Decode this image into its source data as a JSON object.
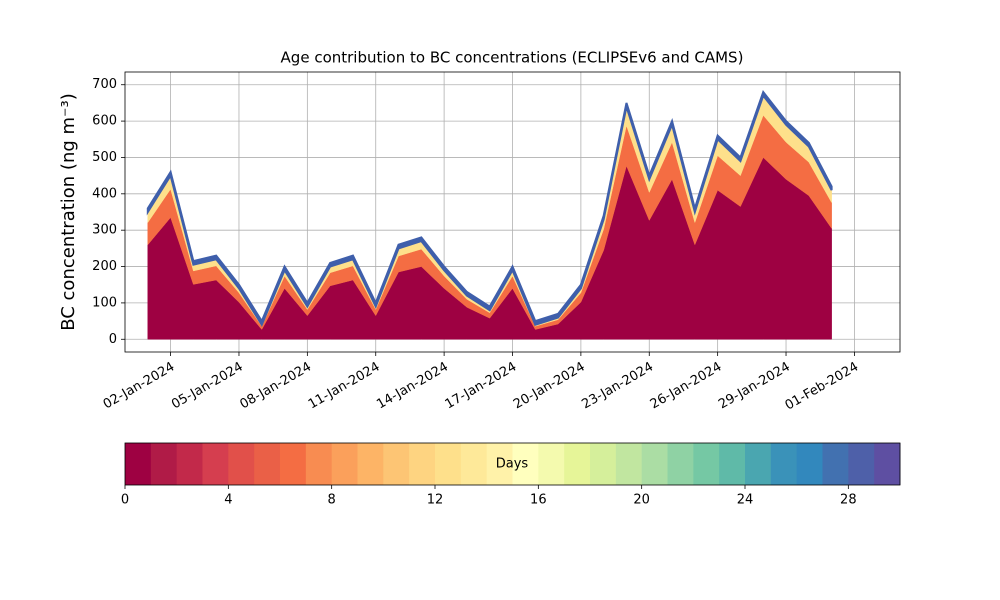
{
  "chart_data": {
    "type": "stacked_area",
    "title": "Age contribution to BC concentrations (ECLIPSEv6 and CAMS)",
    "y_label": "BC concentration (ng m⁻³)",
    "x": [
      "2024-01-01",
      "2024-01-02",
      "2024-01-03",
      "2024-01-04",
      "2024-01-05",
      "2024-01-06",
      "2024-01-07",
      "2024-01-08",
      "2024-01-09",
      "2024-01-10",
      "2024-01-11",
      "2024-01-12",
      "2024-01-13",
      "2024-01-14",
      "2024-01-15",
      "2024-01-16",
      "2024-01-17",
      "2024-01-18",
      "2024-01-19",
      "2024-01-20",
      "2024-01-21",
      "2024-01-22",
      "2024-01-23",
      "2024-01-24",
      "2024-01-25",
      "2024-01-26",
      "2024-01-27",
      "2024-01-28",
      "2024-01-29",
      "2024-01-30",
      "2024-01-31"
    ],
    "series": [
      {
        "color": "#9e0142",
        "values": [
          260,
          335,
          151,
          163,
          102,
          27,
          140,
          65,
          147,
          163,
          65,
          185,
          200,
          140,
          88,
          58,
          140,
          27,
          42,
          102,
          245,
          477,
          327,
          440,
          260,
          410,
          365,
          500,
          440,
          395,
          305
        ]
      },
      {
        "color": "#f46d43",
        "values": [
          61,
          78,
          37,
          39,
          26,
          9,
          34,
          17,
          36,
          39,
          17,
          44,
          48,
          34,
          22,
          15,
          34,
          9,
          12,
          26,
          58,
          111,
          77,
          102,
          61,
          95,
          85,
          116,
          102,
          92,
          71
        ]
      },
      {
        "color": "#fee08b",
        "values": [
          29,
          37,
          17,
          18,
          12,
          4,
          16,
          8,
          17,
          18,
          8,
          21,
          22,
          16,
          10,
          7,
          16,
          4,
          6,
          12,
          27,
          52,
          36,
          48,
          29,
          45,
          40,
          54,
          48,
          43,
          34
        ]
      },
      {
        "color": "#3f5fab",
        "values": [
          10,
          10,
          10,
          10,
          10,
          10,
          10,
          10,
          10,
          10,
          10,
          10,
          10,
          10,
          10,
          10,
          10,
          10,
          10,
          10,
          10,
          10,
          10,
          10,
          10,
          10,
          10,
          10,
          10,
          10,
          10
        ]
      }
    ],
    "xlim": [
      "2023-12-31",
      "2024-02-03"
    ],
    "xticks": [
      {
        "value": "2024-01-02",
        "label": "02-Jan-2024"
      },
      {
        "value": "2024-01-05",
        "label": "05-Jan-2024"
      },
      {
        "value": "2024-01-08",
        "label": "08-Jan-2024"
      },
      {
        "value": "2024-01-11",
        "label": "11-Jan-2024"
      },
      {
        "value": "2024-01-14",
        "label": "14-Jan-2024"
      },
      {
        "value": "2024-01-17",
        "label": "17-Jan-2024"
      },
      {
        "value": "2024-01-20",
        "label": "20-Jan-2024"
      },
      {
        "value": "2024-01-23",
        "label": "23-Jan-2024"
      },
      {
        "value": "2024-01-26",
        "label": "26-Jan-2024"
      },
      {
        "value": "2024-01-29",
        "label": "29-Jan-2024"
      },
      {
        "value": "2024-02-01",
        "label": "01-Feb-2024"
      }
    ],
    "ylim": [
      -35,
      735
    ],
    "yticks": [
      0,
      100,
      200,
      300,
      400,
      500,
      600,
      700
    ],
    "grid": true,
    "colorbar": {
      "label": "Days",
      "lim": [
        0,
        30
      ],
      "ticks": [
        0,
        4,
        8,
        12,
        16,
        20,
        24,
        28
      ],
      "colors": [
        "#9e0142",
        "#b01b47",
        "#c2294a",
        "#d53e4f",
        "#e1504a",
        "#ea6047",
        "#f46d43",
        "#f88c51",
        "#fba05b",
        "#fdb466",
        "#fdc574",
        "#fed481",
        "#fee08b",
        "#fee999",
        "#fff2a9",
        "#ffffbe",
        "#f4faae",
        "#e6f598",
        "#d5ef9b",
        "#c1e6a0",
        "#abdda4",
        "#8fd2a4",
        "#75c8a4",
        "#5fbaa8",
        "#4aa6b0",
        "#3a92b9",
        "#3288bd",
        "#4271b0",
        "#4e60a9",
        "#5e4fa2"
      ]
    }
  }
}
